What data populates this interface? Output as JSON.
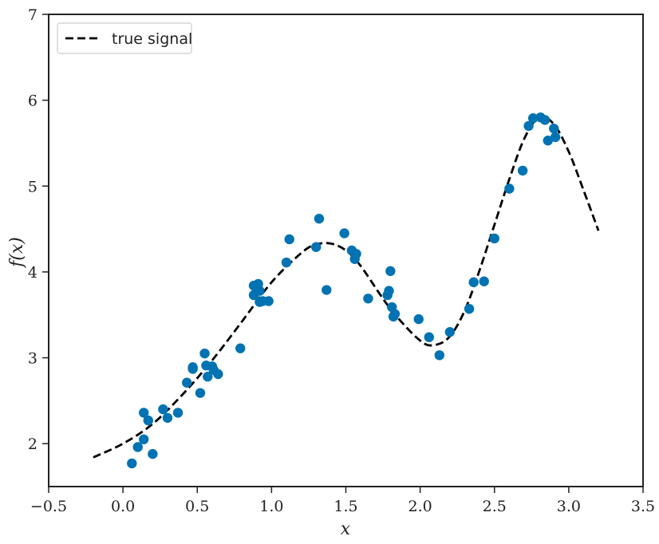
{
  "chart_data": {
    "type": "scatter",
    "title": "",
    "xlabel": "x",
    "ylabel": "f(x)",
    "xlim": [
      -0.5,
      3.5
    ],
    "ylim": [
      1.5,
      7
    ],
    "x_ticks": [
      -0.5,
      0.0,
      0.5,
      1.0,
      1.5,
      2.0,
      2.5,
      3.0,
      3.5
    ],
    "x_tick_labels": [
      "−0.5",
      "0.0",
      "0.5",
      "1.0",
      "1.5",
      "2.0",
      "2.5",
      "3.0",
      "3.5"
    ],
    "y_ticks": [
      2,
      3,
      4,
      5,
      6,
      7
    ],
    "y_tick_labels": [
      "2",
      "3",
      "4",
      "5",
      "6",
      "7"
    ],
    "grid": false,
    "legend": {
      "position": "top-left",
      "entries": [
        "true signal"
      ]
    },
    "series": [
      {
        "name": "true signal",
        "kind": "line",
        "style": "dashed",
        "color": "#000000",
        "x": [
          -0.2,
          0.0,
          0.2,
          0.4,
          0.6,
          0.8,
          1.0,
          1.2,
          1.3,
          1.4,
          1.5,
          1.6,
          1.8,
          2.0,
          2.1,
          2.2,
          2.3,
          2.4,
          2.5,
          2.6,
          2.7,
          2.8,
          2.9,
          3.0,
          3.1,
          3.2
        ],
        "y": [
          1.84,
          2.0,
          2.23,
          2.57,
          2.97,
          3.42,
          3.88,
          4.22,
          4.32,
          4.33,
          4.25,
          4.07,
          3.57,
          3.2,
          3.15,
          3.25,
          3.55,
          4.02,
          4.55,
          5.08,
          5.55,
          5.8,
          5.72,
          5.4,
          4.95,
          4.48
        ]
      },
      {
        "name": "",
        "kind": "scatter",
        "color": "#0173b2",
        "x": [
          0.06,
          0.1,
          0.14,
          0.14,
          0.17,
          0.2,
          0.27,
          0.3,
          0.37,
          0.43,
          0.47,
          0.47,
          0.52,
          0.55,
          0.56,
          0.57,
          0.6,
          0.61,
          0.64,
          0.79,
          0.88,
          0.88,
          0.91,
          0.92,
          0.92,
          0.94,
          0.98,
          1.1,
          1.12,
          1.3,
          1.32,
          1.37,
          1.49,
          1.54,
          1.56,
          1.57,
          1.65,
          1.78,
          1.79,
          1.8,
          1.81,
          1.82,
          1.83,
          1.99,
          2.06,
          2.13,
          2.2,
          2.33,
          2.36,
          2.43,
          2.5,
          2.6,
          2.69,
          2.73,
          2.76,
          2.81,
          2.84,
          2.86,
          2.9,
          2.91
        ],
        "y": [
          1.77,
          1.96,
          2.05,
          2.36,
          2.27,
          1.88,
          2.4,
          2.3,
          2.36,
          2.71,
          2.87,
          2.89,
          2.59,
          3.05,
          2.91,
          2.78,
          2.9,
          2.86,
          2.81,
          3.11,
          3.84,
          3.73,
          3.86,
          3.65,
          3.78,
          3.66,
          3.66,
          4.11,
          4.38,
          4.29,
          4.62,
          3.79,
          4.45,
          4.25,
          4.15,
          4.21,
          3.69,
          3.73,
          3.78,
          4.01,
          3.59,
          3.48,
          3.51,
          3.45,
          3.24,
          3.03,
          3.3,
          3.57,
          3.88,
          3.89,
          4.39,
          4.97,
          5.18,
          5.7,
          5.79,
          5.8,
          5.77,
          5.53,
          5.67,
          5.57
        ]
      }
    ]
  }
}
